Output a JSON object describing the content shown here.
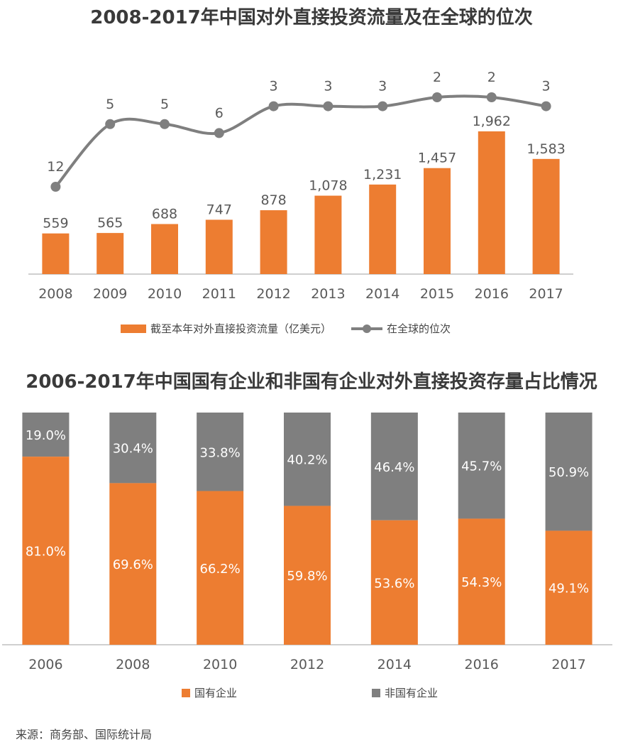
{
  "title1": "2008-2017年中国对外直接投资流量及在全球的位次",
  "title2": "2006-2017年中国国有企业和非国有企业对外直接投资存量占比情况",
  "legend1": {
    "bar": "截至本年对外直接投资流量（亿美元）",
    "line": "在全球的位次"
  },
  "legend2": {
    "soe": "国有企业",
    "non_soe": "非国有企业"
  },
  "source": "来源：商务部、国际统计局",
  "colors": {
    "orange": "#ED7D31",
    "gray": "#7F7F7F",
    "text": "#595959"
  },
  "chart_data": [
    {
      "type": "bar",
      "categories": [
        "2008",
        "2009",
        "2010",
        "2011",
        "2012",
        "2013",
        "2014",
        "2015",
        "2016",
        "2017"
      ],
      "series": [
        {
          "name": "截至本年对外直接投资流量（亿美元）",
          "type": "bar",
          "values": [
            559,
            565,
            688,
            747,
            878,
            1078,
            1231,
            1457,
            1962,
            1583
          ],
          "labels": [
            "559",
            "565",
            "688",
            "747",
            "878",
            "1,078",
            "1,231",
            "1,457",
            "1,962",
            "1,583"
          ]
        },
        {
          "name": "在全球的位次",
          "type": "line",
          "values": [
            12,
            5,
            5,
            6,
            3,
            3,
            3,
            2,
            2,
            3
          ],
          "labels": [
            "12",
            "5",
            "5",
            "6",
            "3",
            "3",
            "3",
            "2",
            "2",
            "3"
          ]
        }
      ]
    },
    {
      "type": "bar",
      "stacked": true,
      "categories": [
        "2006",
        "2008",
        "2010",
        "2012",
        "2014",
        "2016",
        "2017"
      ],
      "series": [
        {
          "name": "国有企业",
          "values": [
            81.0,
            69.6,
            66.2,
            59.8,
            53.6,
            54.3,
            49.1
          ],
          "labels": [
            "81.0%",
            "69.6%",
            "66.2%",
            "59.8%",
            "53.6%",
            "54.3%",
            "49.1%"
          ]
        },
        {
          "name": "非国有企业",
          "values": [
            19.0,
            30.4,
            33.8,
            40.2,
            46.4,
            45.7,
            50.9
          ],
          "labels": [
            "19.0%",
            "30.4%",
            "33.8%",
            "40.2%",
            "46.4%",
            "45.7%",
            "50.9%"
          ]
        }
      ]
    }
  ]
}
